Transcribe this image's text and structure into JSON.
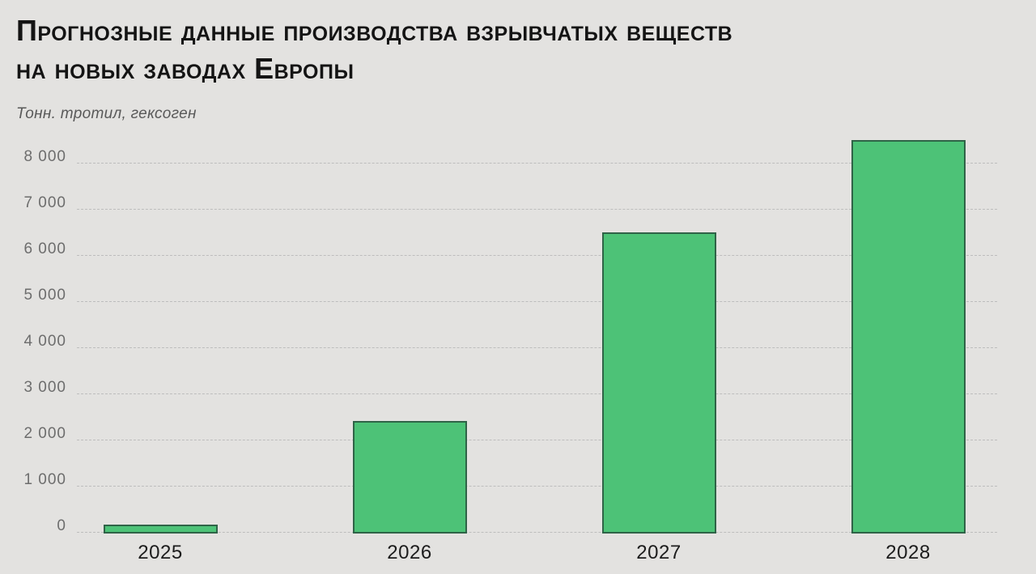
{
  "chart_data": {
    "type": "bar",
    "title": "Прогнозные данные производства взрывчатых веществ на новых заводах Европы",
    "title_lines": [
      "Прогнозные данные производства взрывчатых веществ",
      "на новых заводах Европы"
    ],
    "unit_label": "Тонн. тротил, гексоген",
    "categories": [
      "2025",
      "2026",
      "2027",
      "2028"
    ],
    "values": [
      150,
      2400,
      6500,
      8500
    ],
    "ylim": [
      0,
      8000
    ],
    "ytick_step": 1000,
    "ytick_labels": [
      "0",
      "1 000",
      "2 000",
      "3 000",
      "4 000",
      "5 000",
      "6 000",
      "7 000",
      "8 000"
    ],
    "grid": {
      "horizontal": true,
      "style": "dashed"
    },
    "legend": "none",
    "colors": {
      "background": "#e3e2e0",
      "bar_fill": "#4dc277",
      "bar_border": "#2f6347",
      "gridline": "#bdbdbd",
      "ytick_text": "#6d6d6d",
      "xtick_text": "#1c1c1c",
      "title_text": "#141414",
      "subtitle_text": "#595959"
    }
  }
}
